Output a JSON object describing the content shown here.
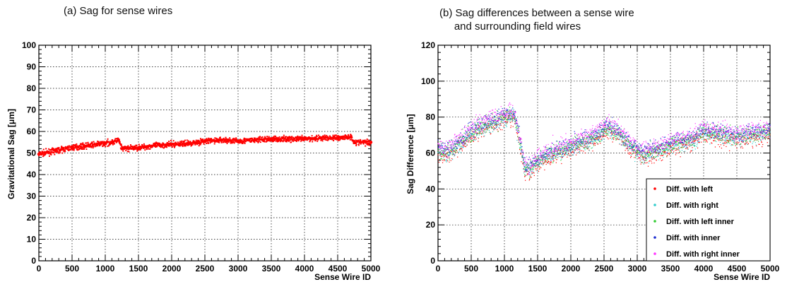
{
  "chart_data": [
    {
      "type": "scatter",
      "title": "(a) Sag for sense wires",
      "xlabel": "Sense Wire ID",
      "ylabel": "Gravitational Sag [μm]",
      "xlim": [
        0,
        5000
      ],
      "ylim": [
        0,
        100
      ],
      "xticks": [
        "0",
        "500",
        "1000",
        "1500",
        "2000",
        "2500",
        "3000",
        "3500",
        "4000",
        "4500",
        "5000"
      ],
      "yticks": [
        "0",
        "10",
        "20",
        "30",
        "40",
        "50",
        "60",
        "70",
        "80",
        "90",
        "100"
      ],
      "grid": true,
      "series": [
        {
          "color": "#ff0000",
          "x": [
            0,
            250,
            500,
            750,
            1000,
            1100,
            1200,
            1250,
            1500,
            1750,
            2000,
            2250,
            2500,
            2750,
            3000,
            3250,
            3500,
            3750,
            4000,
            4250,
            4500,
            4700,
            4750,
            5000
          ],
          "y": [
            49.5,
            51,
            52.5,
            53.5,
            54.5,
            55,
            56,
            52,
            52.5,
            53.5,
            54,
            54.5,
            55.5,
            56,
            55.5,
            56,
            56.5,
            56.5,
            56.5,
            57,
            57,
            57.5,
            55,
            55
          ]
        }
      ]
    },
    {
      "type": "scatter",
      "title": "(b) Sag differences between a sense wire\n     and surrounding field wires",
      "xlabel": "Sense Wire ID",
      "ylabel": "Sag Difference [μm]",
      "xlim": [
        0,
        5000
      ],
      "ylim": [
        0,
        120
      ],
      "xticks": [
        "0",
        "500",
        "1000",
        "1500",
        "2000",
        "2500",
        "3000",
        "3500",
        "4000",
        "4500",
        "5000"
      ],
      "yticks": [
        "0",
        "20",
        "40",
        "60",
        "80",
        "100",
        "120"
      ],
      "grid": true,
      "legend_position": "bottom-right",
      "series": [
        {
          "name": "Diff. with left",
          "color": "#ff0000"
        },
        {
          "name": "Diff. with right",
          "color": "#33cccc"
        },
        {
          "name": "Diff. with left inner",
          "color": "#33cc33"
        },
        {
          "name": "Diff. with inner",
          "color": "#1f2fd1"
        },
        {
          "name": "Diff. with right inner",
          "color": "#ff33ff"
        }
      ],
      "trend": {
        "x": [
          0,
          150,
          400,
          600,
          800,
          1000,
          1150,
          1250,
          1300,
          1400,
          1500,
          1700,
          2000,
          2300,
          2550,
          2700,
          2900,
          3100,
          3300,
          3600,
          3850,
          4000,
          4200,
          4500,
          4800,
          5000
        ],
        "y": [
          61,
          61,
          68,
          74,
          77,
          80,
          81,
          64,
          52,
          51,
          56,
          60,
          64,
          68,
          74,
          72,
          64,
          59,
          62,
          66,
          68,
          72,
          71,
          69,
          71,
          72
        ]
      }
    }
  ]
}
